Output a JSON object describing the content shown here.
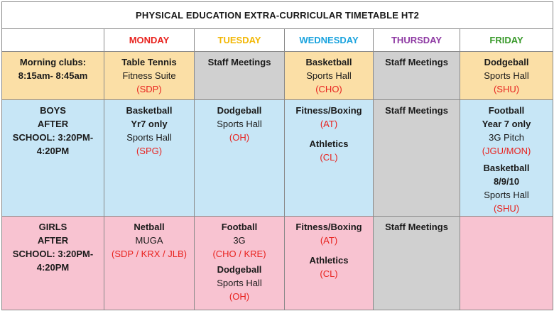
{
  "title": "PHYSICAL EDUCATION EXTRA-CURRICULAR TIMETABLE HT2",
  "days": [
    {
      "label": "MONDAY",
      "color": "#e8231f"
    },
    {
      "label": "TUESDAY",
      "color": "#f2b705"
    },
    {
      "label": "WEDNESDAY",
      "color": "#1aa3de"
    },
    {
      "label": "THURSDAY",
      "color": "#8e3aa3"
    },
    {
      "label": "FRIDAY",
      "color": "#3a9a2c"
    }
  ],
  "colors": {
    "orange": "#fbdfa6",
    "gray": "#d0d0d0",
    "blue": "#c7e6f6",
    "pink": "#f8c3d1",
    "code_red": "#e8231f"
  },
  "rows": {
    "morning": {
      "label_lines": [
        "Morning clubs:",
        "8:15am- 8:45am"
      ],
      "monday": {
        "activity": "Table Tennis",
        "venue": "Fitness Suite",
        "code": "(SDP)"
      },
      "tuesday": {
        "activity": "Staff Meetings"
      },
      "wednesday": {
        "activity": "Basketball",
        "venue": "Sports Hall",
        "code": "(CHO)"
      },
      "thursday": {
        "activity": "Staff Meetings"
      },
      "friday": {
        "activity": "Dodgeball",
        "venue": "Sports Hall",
        "code": "(SHU)"
      }
    },
    "boys": {
      "label_lines": [
        "BOYS",
        "AFTER",
        "SCHOOL: 3:20PM-",
        "4:20PM"
      ],
      "monday": {
        "activity": "Basketball",
        "detail": "Yr7 only",
        "venue": "Sports Hall",
        "code": "(SPG)"
      },
      "tuesday": {
        "activity": "Dodgeball",
        "venue": "Sports Hall",
        "code": "(OH)"
      },
      "wednesday": [
        {
          "activity": "Fitness/Boxing",
          "code": "(AT)"
        },
        {
          "activity": "Athletics",
          "code": "(CL)"
        }
      ],
      "thursday": {
        "activity": "Staff Meetings"
      },
      "friday": [
        {
          "activity": "Football",
          "detail": "Year 7 only",
          "venue": "3G Pitch",
          "code": "(JGU/MON)"
        },
        {
          "activity": "Basketball",
          "detail": "8/9/10",
          "venue": "Sports Hall",
          "code": "(SHU)"
        }
      ]
    },
    "girls": {
      "label_lines": [
        "GIRLS",
        "AFTER",
        "SCHOOL: 3:20PM-",
        "4:20PM"
      ],
      "monday": {
        "activity": "Netball",
        "venue": "MUGA",
        "code": "(SDP / KRX / JLB)"
      },
      "tuesday": [
        {
          "activity": "Football",
          "venue": "3G",
          "code": "(CHO / KRE)"
        },
        {
          "activity": "Dodgeball",
          "venue": "Sports Hall",
          "code": "(OH)"
        }
      ],
      "wednesday": [
        {
          "activity": "Fitness/Boxing",
          "code": "(AT)"
        },
        {
          "activity": "Athletics",
          "code": "(CL)"
        }
      ],
      "thursday": {
        "activity": "Staff Meetings"
      }
    }
  }
}
